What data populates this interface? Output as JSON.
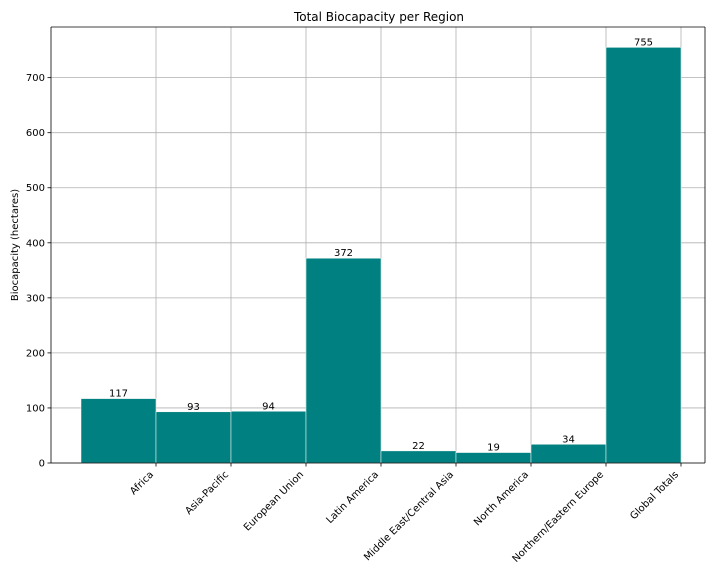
{
  "chart_data": {
    "type": "bar",
    "title": "Total Biocapacity per Region",
    "xlabel": "",
    "ylabel": "Biocapacity (hectares)",
    "categories": [
      "Africa",
      "Asia-Pacific",
      "European Union",
      "Latin America",
      "Middle East/Central Asia",
      "North America",
      "Northern/Eastern Europe",
      "Global Totals"
    ],
    "values": [
      117,
      93,
      94,
      372,
      22,
      19,
      34,
      755
    ],
    "data_labels": [
      "117",
      "93",
      "94",
      "372",
      "22",
      "19",
      "34",
      "755"
    ],
    "ylim": [
      0,
      792
    ],
    "yticks": [
      0,
      100,
      200,
      300,
      400,
      500,
      600,
      700
    ],
    "grid": true,
    "bar_color": "#008080"
  }
}
